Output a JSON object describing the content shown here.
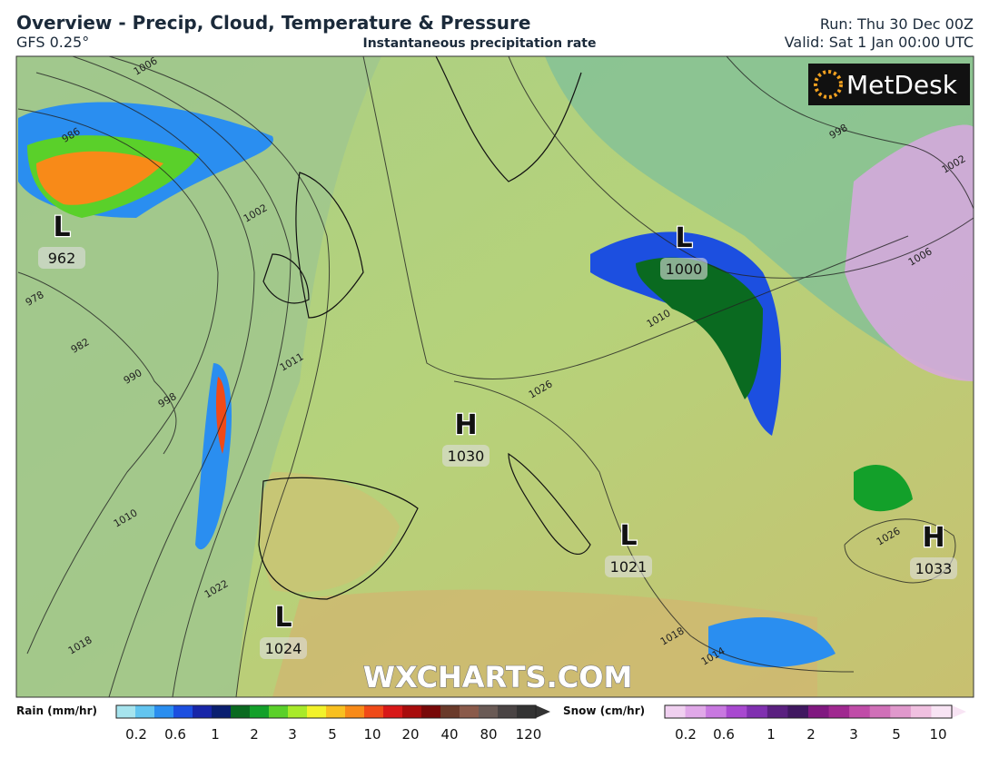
{
  "header": {
    "title": "Overview - Precip, Cloud, Temperature & Pressure",
    "model": "GFS 0.25°",
    "subtitle": "Instantaneous precipitation rate",
    "run": "Run: Thu 30 Dec 00Z",
    "valid": "Valid: Sat 1 Jan 00:00 UTC"
  },
  "logo": "MetDesk",
  "watermark": "WXCHARTS.COM",
  "pressure_systems": [
    {
      "type": "L",
      "value": "962"
    },
    {
      "type": "L",
      "value": "1000"
    },
    {
      "type": "H",
      "value": "1030"
    },
    {
      "type": "L",
      "value": "1021"
    },
    {
      "type": "H",
      "value": "1033"
    },
    {
      "type": "L",
      "value": "1024"
    }
  ],
  "isobar_labels": [
    "1006",
    "986",
    "978",
    "982",
    "990",
    "998",
    "1010",
    "1022",
    "1018",
    "1014",
    "1018",
    "1026",
    "1010",
    "1026",
    "1011",
    "1002",
    "998",
    "1006",
    "1002"
  ],
  "rain_legend": {
    "label": "Rain (mm/hr)",
    "ticks": [
      "0.2",
      "0.6",
      "1",
      "2",
      "3",
      "5",
      "10",
      "20",
      "40",
      "80",
      "120"
    ],
    "colors": [
      "#a6e4ee",
      "#62c5f0",
      "#2a8ef0",
      "#1c4fe0",
      "#1826a8",
      "#0a1f70",
      "#0a6a20",
      "#13a02a",
      "#5ad02a",
      "#a8ea2a",
      "#f2f22a",
      "#f8c020",
      "#f88a18",
      "#f04a18",
      "#d81818",
      "#a80c0c",
      "#780808",
      "#6a3a2a",
      "#8a5a4a",
      "#6a5a55",
      "#4a4444",
      "#333"
    ]
  },
  "snow_legend": {
    "label": "Snow (cm/hr)",
    "ticks": [
      "0.2",
      "0.6",
      "1",
      "2",
      "3",
      "5",
      "10"
    ],
    "colors": [
      "#f0d0f0",
      "#e0a8e8",
      "#c878e0",
      "#a848d0",
      "#8030b0",
      "#5a2080",
      "#401860",
      "#801880",
      "#a02890",
      "#c04ca8",
      "#d070b8",
      "#e098cc",
      "#f0c0e0",
      "#f8e4f4"
    ]
  }
}
